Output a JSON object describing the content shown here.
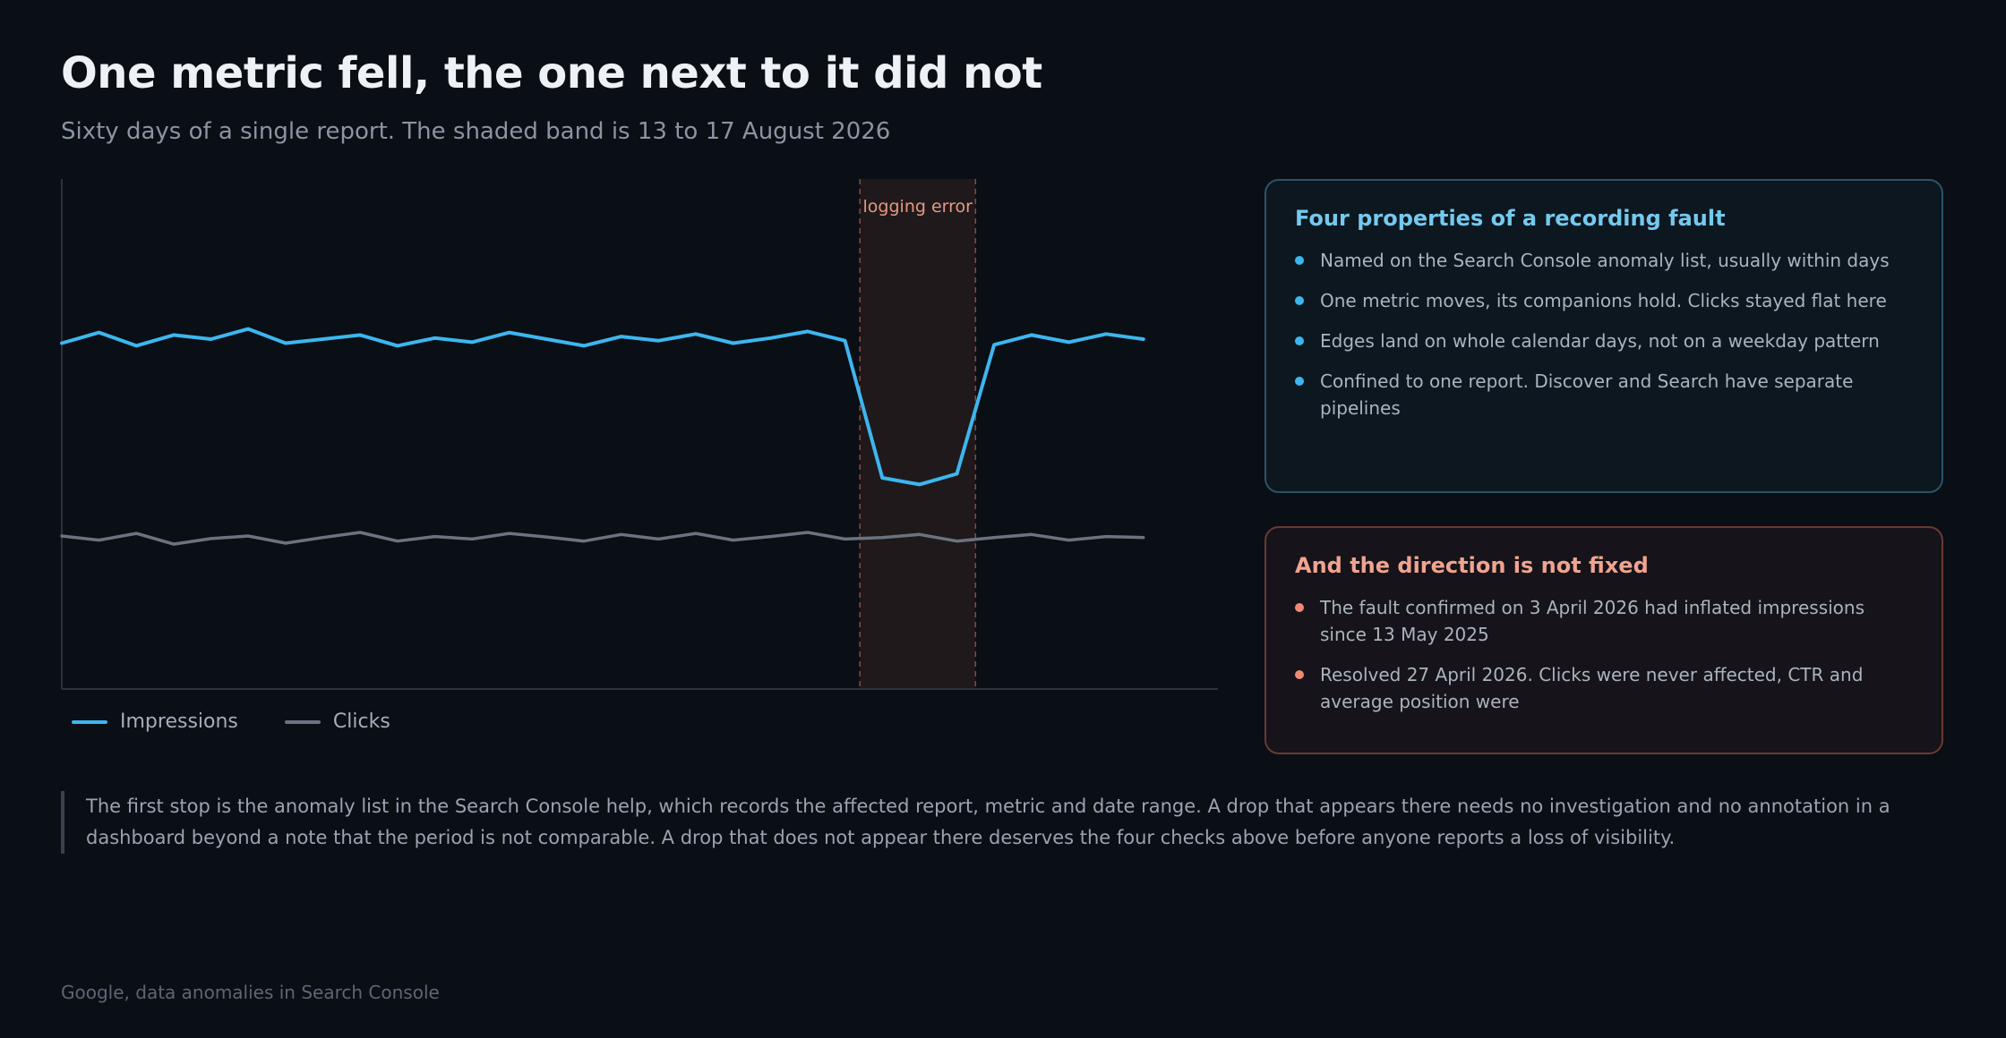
{
  "header": {
    "title": "One metric fell, the one next to it did not",
    "subtitle": "Sixty days of a single report. The shaded band is 13 to 17 August 2026"
  },
  "chart_data": {
    "type": "line",
    "x": [
      1,
      2,
      3,
      4,
      5,
      6,
      7,
      8,
      9,
      10,
      11,
      12,
      13,
      14,
      15,
      16,
      17,
      18,
      19,
      20,
      21,
      22,
      23,
      24,
      25,
      26,
      27,
      28,
      29,
      30
    ],
    "series": [
      {
        "name": "Impressions",
        "color": "#3db6ee",
        "values": [
          67.8,
          69.9,
          67.3,
          69.4,
          68.6,
          70.6,
          67.8,
          68.6,
          69.4,
          67.3,
          68.8,
          68.0,
          69.9,
          68.6,
          67.3,
          69.1,
          68.3,
          69.6,
          67.8,
          68.8,
          70.1,
          68.3,
          41.4,
          40.1,
          42.2,
          67.5,
          69.4,
          68.0,
          69.6,
          68.6
        ]
      },
      {
        "name": "Clicks",
        "color": "#6b7380",
        "values": [
          30.0,
          29.2,
          30.5,
          28.4,
          29.5,
          30.0,
          28.6,
          29.7,
          30.7,
          29.0,
          29.9,
          29.4,
          30.5,
          29.8,
          29.0,
          30.3,
          29.4,
          30.5,
          29.2,
          29.9,
          30.7,
          29.4,
          29.7,
          30.3,
          29.0,
          29.7,
          30.3,
          29.2,
          29.9,
          29.7
        ]
      }
    ],
    "annotation": {
      "label": "logging error",
      "x_start": 22.4,
      "x_end": 25.5,
      "color": "#e79882"
    },
    "ylim": [
      0,
      100
    ],
    "xlim": [
      1,
      32
    ],
    "grid": false,
    "legend_position": "bottom-left"
  },
  "cards": {
    "properties": {
      "title": "Four properties of a recording fault",
      "items": [
        "Named on the Search Console anomaly list, usually within days",
        "One metric moves, its companions hold. Clicks stayed flat here",
        "Edges land on whole calendar days, not on a weekday pattern",
        "Confined to one report. Discover and Search have separate pipelines"
      ]
    },
    "direction": {
      "title": "And the direction is not fixed",
      "items": [
        "The fault confirmed on 3 April 2026 had inflated impressions since 13 May 2025",
        "Resolved 27 April 2026. Clicks were never affected, CTR and average position were"
      ]
    }
  },
  "note": "The first stop is the anomaly list in the Search Console help, which records the affected report, metric and date range. A drop that appears there needs no investigation and no annotation in a dashboard beyond a note that the period is not comparable. A drop that does not appear there deserves the four checks above before anyone reports a loss of visibility.",
  "source": "Google, data anomalies in Search Console"
}
